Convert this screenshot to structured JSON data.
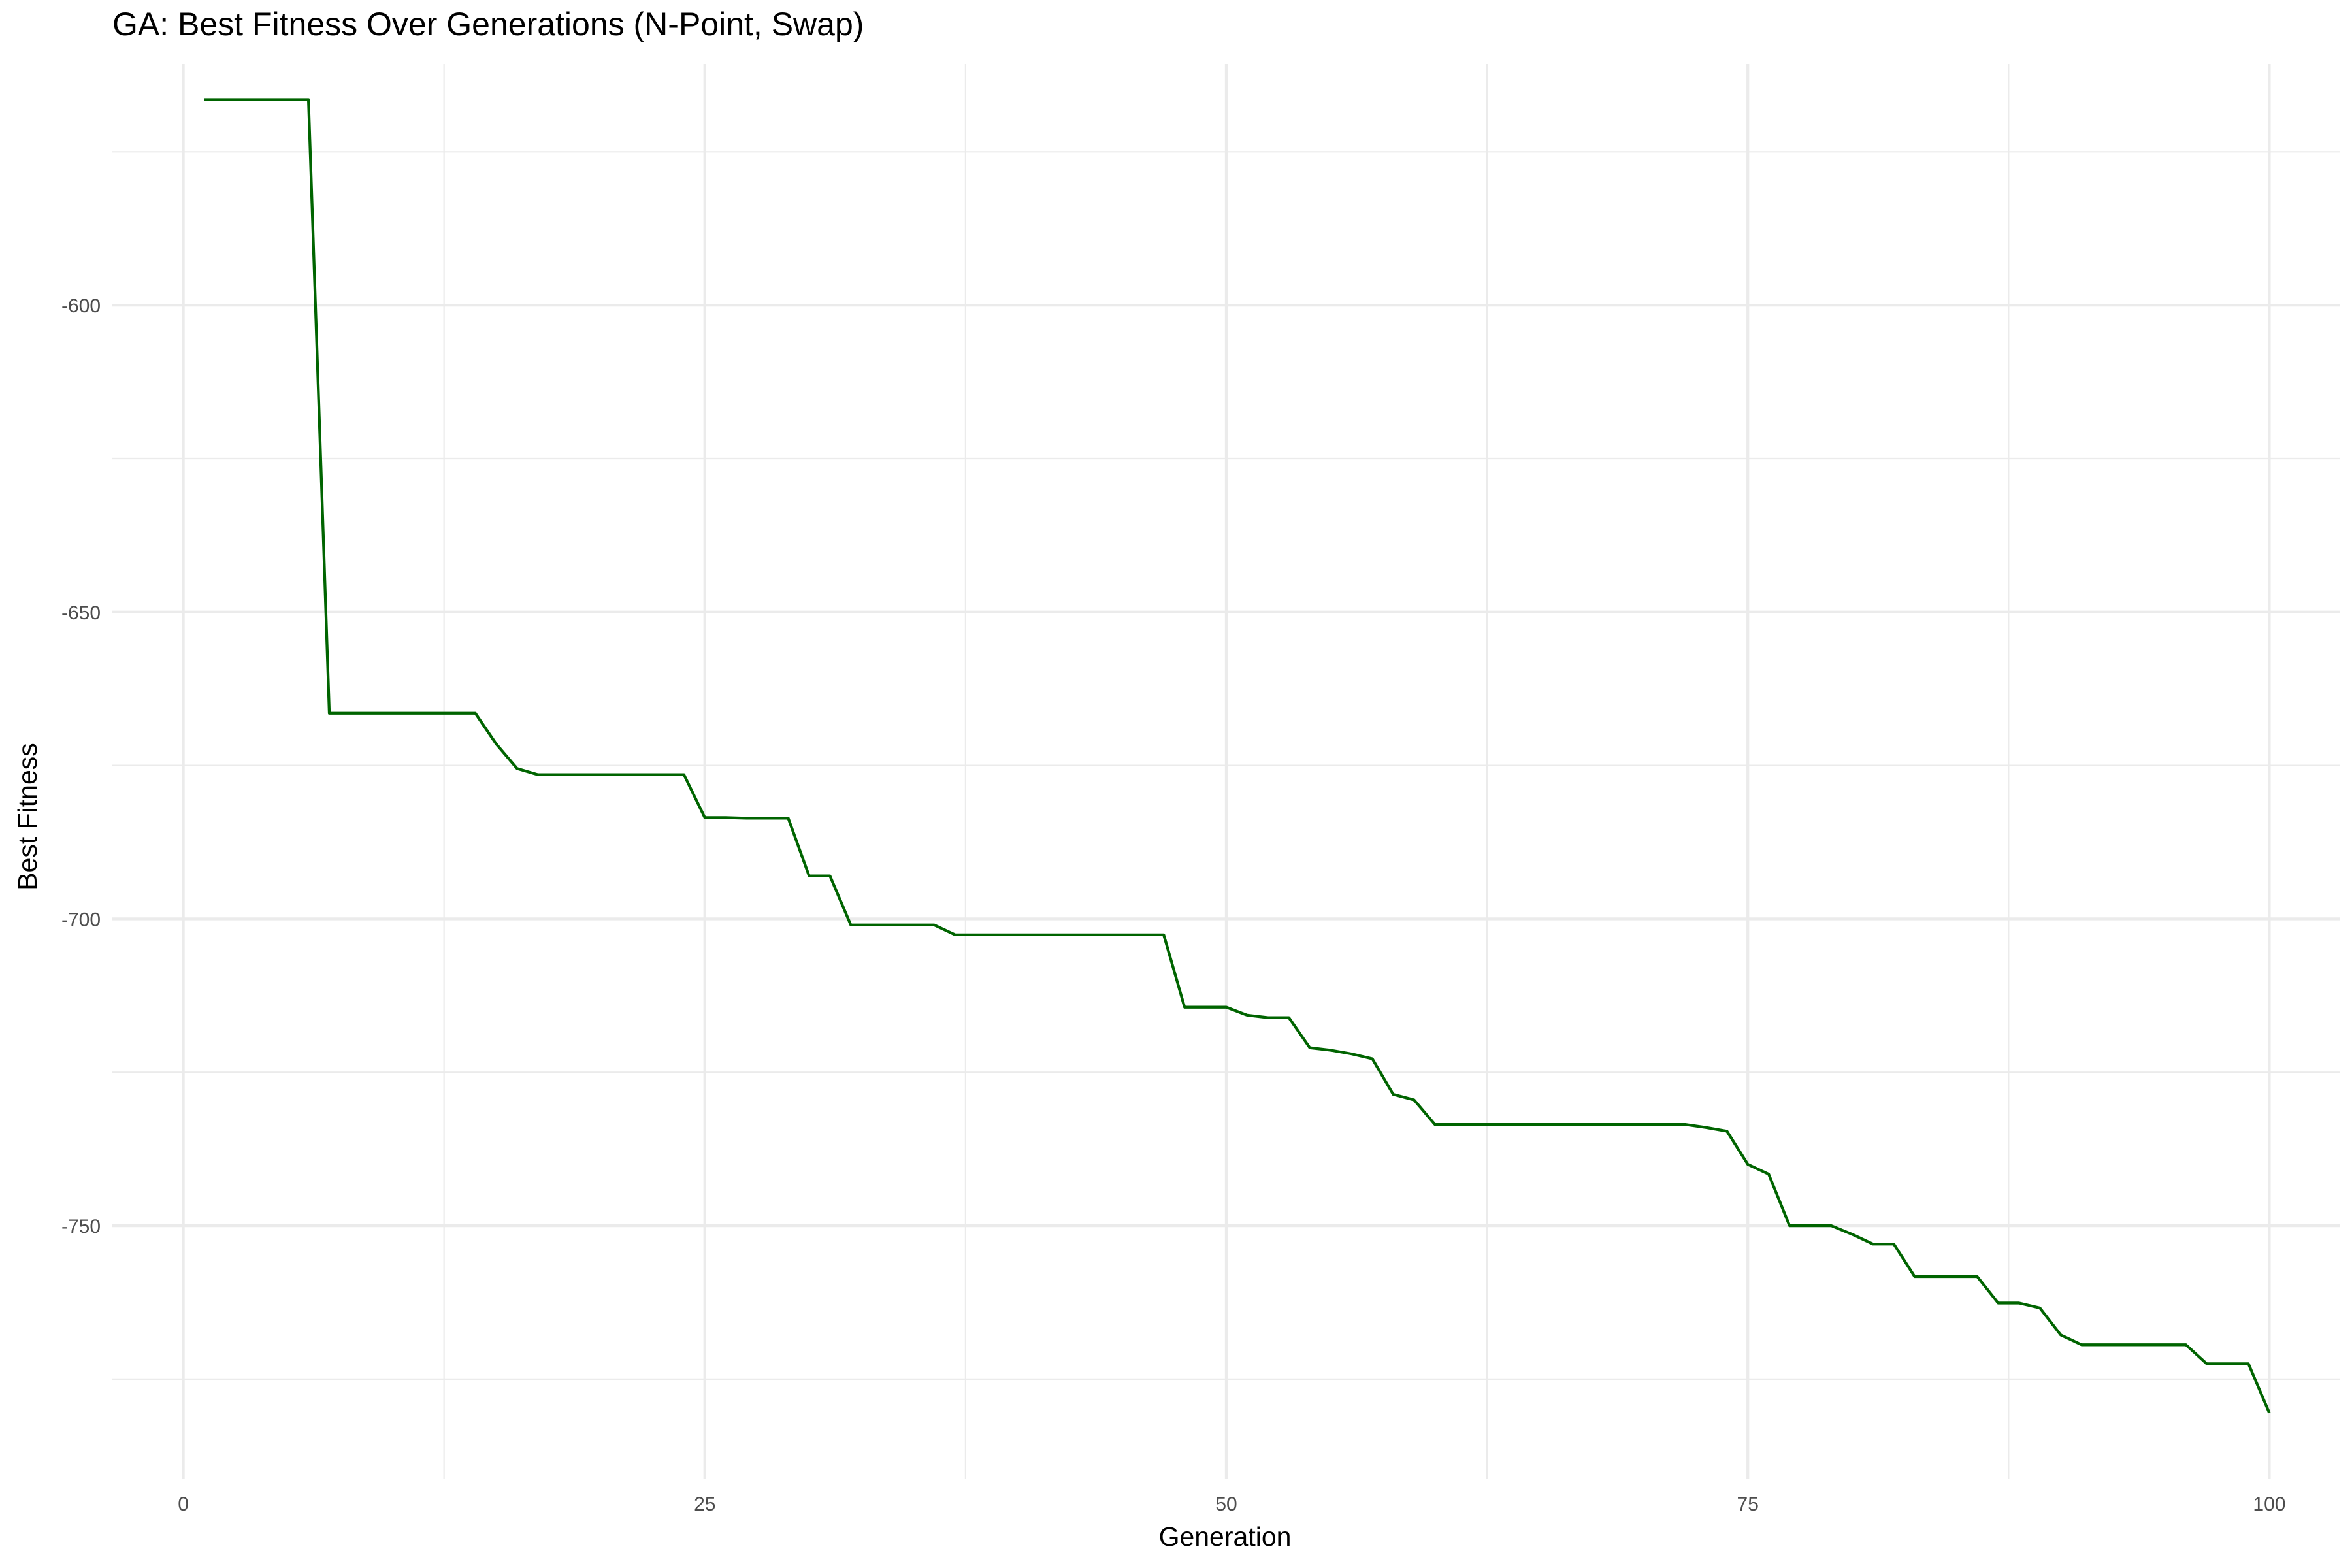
{
  "chart_data": {
    "type": "line",
    "title": "GA: Best Fitness Over Generations (N-Point, Swap)",
    "xlabel": "Generation",
    "ylabel": "Best Fitness",
    "xlim": [
      -3.4,
      103.4
    ],
    "ylim": [
      -791.3,
      -560.7
    ],
    "x_ticks": [
      0,
      25,
      50,
      75,
      100
    ],
    "y_ticks": [
      -600,
      -650,
      -700,
      -750
    ],
    "x_minor_ticks": [
      12.5,
      37.5,
      62.5,
      87.5
    ],
    "y_minor_ticks": [
      -575,
      -625,
      -675,
      -725,
      -775
    ],
    "grid": true,
    "legend": "none",
    "line_color": "#006400",
    "series": [
      {
        "x": [
          1,
          2,
          3,
          4,
          5,
          6,
          7,
          8,
          9,
          10,
          11,
          12,
          13,
          14,
          15,
          16,
          17,
          18,
          19,
          20,
          21,
          22,
          23,
          24,
          25,
          26,
          27,
          28,
          29,
          30,
          31,
          32,
          33,
          34,
          35,
          36,
          37,
          38,
          39,
          40,
          41,
          42,
          43,
          44,
          45,
          46,
          47,
          48,
          49,
          50,
          51,
          52,
          53,
          54,
          55,
          56,
          57,
          58,
          59,
          60,
          61,
          62,
          63,
          64,
          65,
          66,
          67,
          68,
          69,
          70,
          71,
          72,
          73,
          74,
          75,
          76,
          77,
          78,
          79,
          80,
          81,
          82,
          83,
          84,
          85,
          86,
          87,
          88,
          89,
          90,
          91,
          92,
          93,
          94,
          95,
          96,
          97,
          98,
          99,
          100
        ],
        "values": [
          -566.5,
          -566.5,
          -566.5,
          -566.5,
          -566.5,
          -566.5,
          -666.5,
          -666.5,
          -666.5,
          -666.5,
          -666.5,
          -666.5,
          -666.5,
          -666.5,
          -671.5,
          -675.5,
          -676.5,
          -676.5,
          -676.5,
          -676.5,
          -676.5,
          -676.5,
          -676.5,
          -676.5,
          -683.5,
          -683.5,
          -683.6,
          -683.6,
          -683.6,
          -693.0,
          -693.0,
          -701.0,
          -701.0,
          -701.0,
          -701.0,
          -701.0,
          -702.6,
          -702.6,
          -702.6,
          -702.6,
          -702.6,
          -702.6,
          -702.6,
          -702.6,
          -702.6,
          -702.6,
          -702.6,
          -714.4,
          -714.4,
          -714.4,
          -715.7,
          -716.1,
          -716.1,
          -721.0,
          -721.4,
          -722.0,
          -722.8,
          -728.6,
          -729.5,
          -733.5,
          -733.5,
          -733.5,
          -733.5,
          -733.5,
          -733.5,
          -733.5,
          -733.5,
          -733.5,
          -733.5,
          -733.5,
          -733.5,
          -733.5,
          -734.0,
          -734.6,
          -740.0,
          -741.6,
          -750.0,
          -750.0,
          -750.0,
          -751.4,
          -753.0,
          -753.0,
          -758.3,
          -758.3,
          -758.3,
          -758.3,
          -762.6,
          -762.6,
          -763.4,
          -767.8,
          -769.4,
          -769.4,
          -769.4,
          -769.4,
          -769.4,
          -769.4,
          -772.5,
          -772.5,
          -772.5,
          -780.5
        ]
      }
    ]
  }
}
